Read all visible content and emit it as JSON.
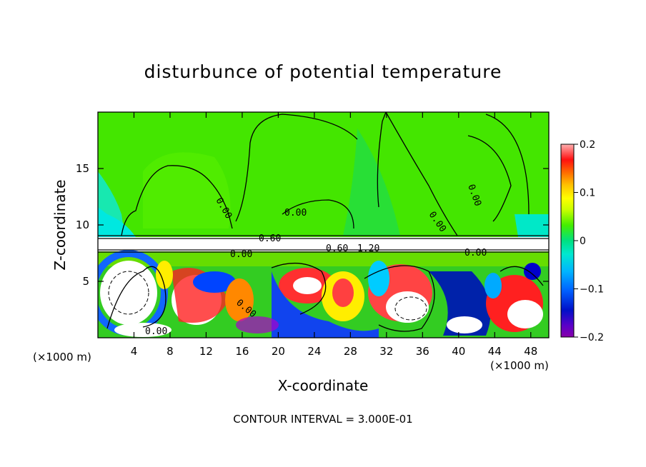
{
  "chart_data": {
    "type": "heatmap",
    "title": "disturbunce of potential temperature",
    "xlabel": "X-coordinate",
    "ylabel": "Z-coordinate",
    "x_unit_label": "(×1000 m)",
    "xlim": [
      0,
      50
    ],
    "ylim": [
      0,
      20
    ],
    "x_ticks": [
      4,
      8,
      12,
      16,
      20,
      24,
      28,
      32,
      36,
      40,
      44,
      48
    ],
    "y_ticks": [
      5,
      10,
      15
    ],
    "colorbar": {
      "range": [
        -0.2,
        0.2
      ],
      "tick_values": [
        0.2,
        0.1,
        0,
        -0.1,
        -0.2
      ],
      "tick_labels": [
        "0.2",
        "0.1",
        "0",
        "−0.1",
        "−0.2"
      ]
    },
    "contour_labels": [
      "0.00",
      "0.00",
      "0.00",
      "0.00",
      "0.00",
      "0.60",
      "0.60",
      "1.20",
      "0.00",
      "0.00",
      "0.00"
    ],
    "footer": "CONTOUR INTERVAL = 3.000E-01"
  }
}
